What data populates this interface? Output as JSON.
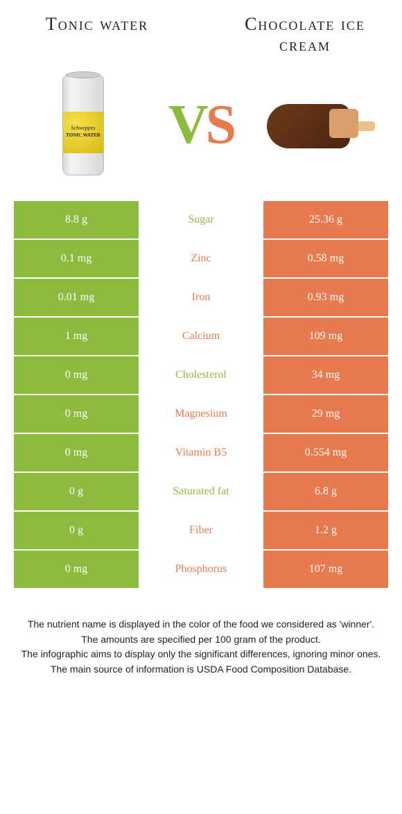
{
  "left_food": {
    "title": "Tonic water",
    "color": "#8dbb3f"
  },
  "right_food": {
    "title": "Chocolate ice cream",
    "color": "#e77a4e"
  },
  "vs": {
    "v": "V",
    "s": "S"
  },
  "can": {
    "brand": "Schweppes",
    "sub": "TONIC WATER"
  },
  "rows": [
    {
      "left": "8.8 g",
      "label": "Sugar",
      "right": "25.36 g",
      "winner": "left"
    },
    {
      "left": "0.1 mg",
      "label": "Zinc",
      "right": "0.58 mg",
      "winner": "right"
    },
    {
      "left": "0.01 mg",
      "label": "Iron",
      "right": "0.93 mg",
      "winner": "right"
    },
    {
      "left": "1 mg",
      "label": "Calcium",
      "right": "109 mg",
      "winner": "right"
    },
    {
      "left": "0 mg",
      "label": "Cholesterol",
      "right": "34 mg",
      "winner": "left"
    },
    {
      "left": "0 mg",
      "label": "Magnesium",
      "right": "29 mg",
      "winner": "right"
    },
    {
      "left": "0 mg",
      "label": "Vitamin B5",
      "right": "0.554 mg",
      "winner": "right"
    },
    {
      "left": "0 g",
      "label": "Saturated fat",
      "right": "6.8 g",
      "winner": "left"
    },
    {
      "left": "0 g",
      "label": "Fiber",
      "right": "1.2 g",
      "winner": "right"
    },
    {
      "left": "0 mg",
      "label": "Phosphorus",
      "right": "107 mg",
      "winner": "right"
    }
  ],
  "footer": {
    "l1": "The nutrient name is displayed in the color of the food we considered as 'winner'.",
    "l2": "The amounts are specified per 100 gram of the product.",
    "l3": "The infographic aims to display only the significant differences, ignoring minor ones.",
    "l4": "The main source of information is USDA Food Composition Database."
  }
}
